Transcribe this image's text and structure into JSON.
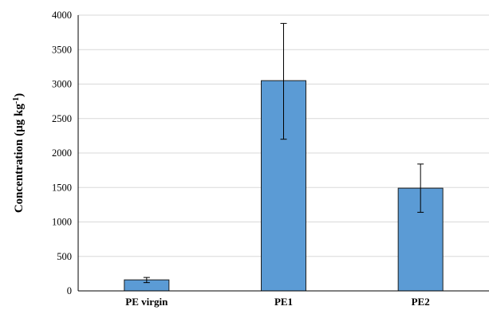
{
  "chart_data": {
    "type": "bar",
    "title": "",
    "xlabel": "",
    "ylabel": "Concentration (µg kg",
    "ylabel_superscript": "-1",
    "ylabel_suffix": ")",
    "categories": [
      "PE virgin",
      "PE1",
      "PE2"
    ],
    "values": [
      160,
      3050,
      1490
    ],
    "error_bars": [
      {
        "low": 120,
        "high": 195
      },
      {
        "low": 2200,
        "high": 3880
      },
      {
        "low": 1140,
        "high": 1840
      }
    ],
    "ylim": [
      0,
      4000
    ],
    "yticks": [
      "0",
      "500",
      "1000",
      "1500",
      "2000",
      "2500",
      "3000",
      "3500",
      "4000"
    ],
    "ytick_values": [
      0,
      500,
      1000,
      1500,
      2000,
      2500,
      3000,
      3500,
      4000
    ],
    "grid": true,
    "legend": "none",
    "colors": {
      "bar_fill": "#5b9bd5",
      "bar_stroke": "#1f1f1f",
      "grid": "#d9d9d9",
      "axis": "#000000"
    }
  }
}
